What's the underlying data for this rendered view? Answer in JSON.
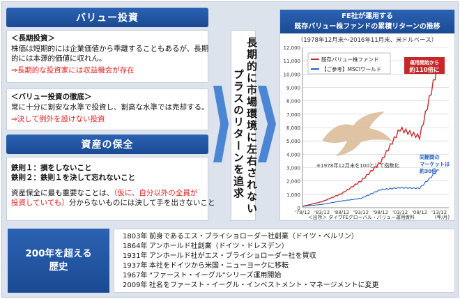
{
  "value": {
    "title": "バリュー投資",
    "long_term": {
      "heading": "＜長期投資＞",
      "line1": "株価は短期的には企業価値から乖離することもあるが、長期",
      "line2": "的には本源的価値に収れん。",
      "note": "⇒長期的な投資家には収益機会が存在"
    },
    "discipline": {
      "heading": "＜バリュー投資の徹底＞",
      "line1": "常に十分に割安な水準で投資し、割高な水準では売却する。",
      "note": "⇒決して例外を設けない投資"
    }
  },
  "preservation": {
    "title": "資産の保全",
    "rule1": "鉄則１：損をしないこと",
    "rule2": "鉄則２：鉄則１を決して忘れないこと",
    "desc_a": "資産保全に最も重要なことは、",
    "desc_b": "（仮に、自分以外の全員が",
    "desc_c": "投資していても）",
    "desc_d": "分からないものには決して手を出さないこと"
  },
  "center_message": {
    "col1": "長期的に市場環境に左右されない",
    "col2": "プラスのリターンを追求"
  },
  "chart": {
    "title_line1": "FE社が運用する",
    "title_line2": "既存バリュー株ファンドの累積リターンの推移",
    "subtitle": "（1978年12月末～2016年11月末、米ドルベース）",
    "legend_fund": "既存バリュー株ファンド",
    "legend_ref": "【ご参考】MSCIワールド",
    "note_fund_a": "運用開始から",
    "note_fund_b": "約110倍に",
    "note_base": "※1978年12月末を100として指数化",
    "note_market_a": "同期間の",
    "note_market_b": "マーケットは",
    "note_market_c": "約30倍",
    "source": "＜出所＞ ダイワFEグローバル・バリュー運用資料",
    "unit": "(年/月)",
    "colors": {
      "fund": "#c62828",
      "ref": "#1f5fbf",
      "grid": "#c9c9c9"
    }
  },
  "chart_data": {
    "type": "line",
    "x": [
      "'78/12",
      "'83/12",
      "'88/12",
      "'93/12",
      "'98/12",
      "'03/12",
      "'08/12",
      "'13/12"
    ],
    "ylim": [
      0,
      12000
    ],
    "yticks": [
      "0",
      "1,000",
      "2,000",
      "3,000",
      "4,000",
      "5,000",
      "6,000",
      "7,000",
      "8,000",
      "9,000",
      "10,000",
      "11,000",
      "12,000"
    ],
    "series": [
      {
        "name": "既存バリュー株ファンド",
        "values": [
          100,
          450,
          1050,
          2000,
          3400,
          5900,
          5300,
          11000
        ]
      },
      {
        "name": "【ご参考】MSCIワールド",
        "values": [
          100,
          250,
          500,
          700,
          1350,
          1500,
          1450,
          2900
        ]
      }
    ]
  },
  "history": {
    "title_line1": "200年を超える",
    "title_line2": "歴史",
    "rows": [
      {
        "year": "1803年",
        "text": "前身であるエス・ブライショローダー社創業（ドイツ・ベルリン）"
      },
      {
        "year": "1864年",
        "text": "アンホールド社創業（ドイツ・ドレスデン）"
      },
      {
        "year": "1931年",
        "text": "アンホールド社がエス・ブライショローダー社を買収"
      },
      {
        "year": "1937年",
        "text": "本社をドイツから米国・ニューヨークに移転"
      },
      {
        "year": "1967年",
        "text": "“ファースト・イーグル”シリーズ運用開始"
      },
      {
        "year": "2009年",
        "text": "社名をファースト・イーグル・インベストメント・マネージメントに変更"
      }
    ]
  }
}
